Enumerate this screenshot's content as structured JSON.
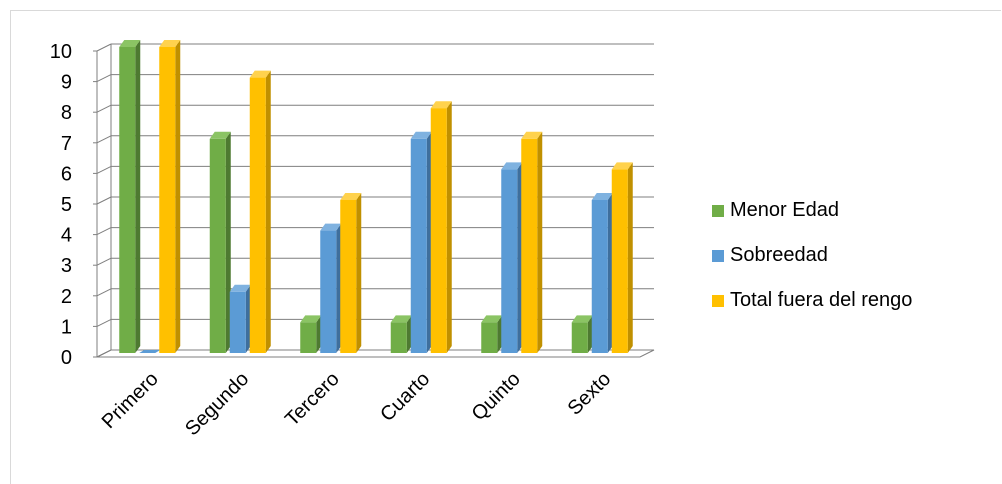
{
  "chart_data": {
    "type": "bar",
    "categories": [
      "Primero",
      "Segundo",
      "Tercero",
      "Cuarto",
      "Quinto",
      "Sexto"
    ],
    "series": [
      {
        "name": "Menor Edad",
        "values": [
          10,
          7,
          1,
          1,
          1,
          1
        ],
        "color": "#70ad47",
        "side_color": "#4e7a31",
        "top_color": "#8bc464"
      },
      {
        "name": "Sobreedad",
        "values": [
          0,
          2,
          4,
          7,
          6,
          5
        ],
        "color": "#5b9bd5",
        "side_color": "#3e6f9d",
        "top_color": "#7fb2e0"
      },
      {
        "name": "Total fuera del rengo",
        "values": [
          10,
          9,
          5,
          8,
          7,
          6
        ],
        "color": "#ffc000",
        "side_color": "#c09000",
        "top_color": "#ffd24d"
      }
    ],
    "yticks": [
      "0",
      "1",
      "2",
      "3",
      "4",
      "5",
      "6",
      "7",
      "8",
      "9",
      "10"
    ],
    "ylim": [
      0,
      10
    ],
    "grid": true,
    "legend_position": "right",
    "title": "",
    "xlabel": "",
    "ylabel": ""
  }
}
